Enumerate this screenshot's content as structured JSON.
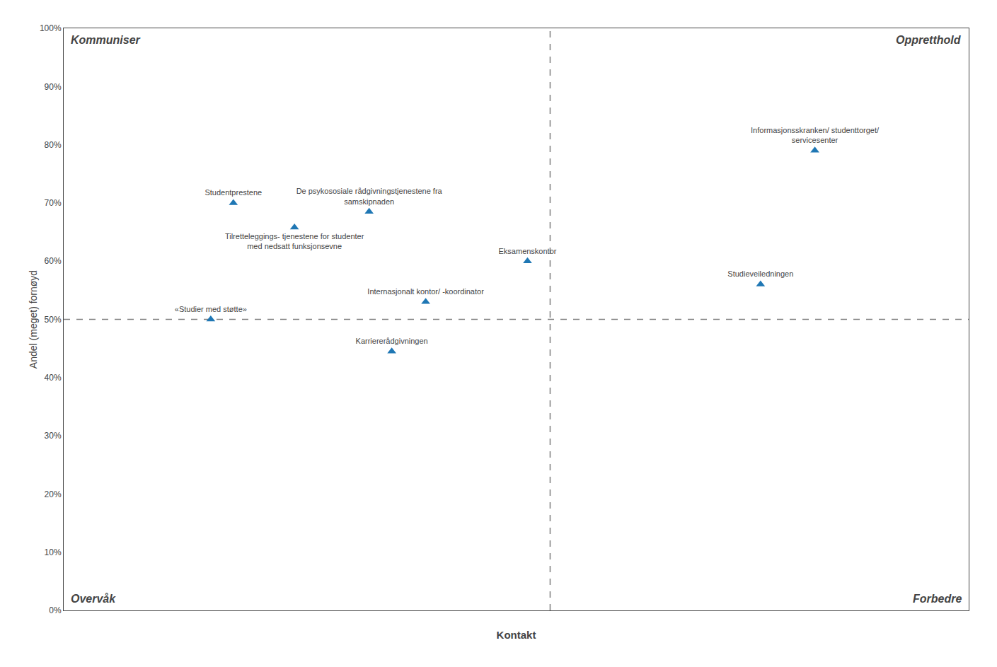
{
  "chart_data": {
    "type": "scatter",
    "xlabel": "Kontakt",
    "ylabel": "Andel (meget) fornøyd",
    "xlim": [
      0.5,
      4.5
    ],
    "xticks": [],
    "ylim": [
      0.0,
      1.0
    ],
    "yticks": [
      {
        "value": 0.0,
        "label": "0%"
      },
      {
        "value": 0.1,
        "label": "10%"
      },
      {
        "value": 0.2,
        "label": "20%"
      },
      {
        "value": 0.3,
        "label": "30%"
      },
      {
        "value": 0.4,
        "label": "40%"
      },
      {
        "value": 0.5,
        "label": "50%"
      },
      {
        "value": 0.6,
        "label": "60%"
      },
      {
        "value": 0.7,
        "label": "70%"
      },
      {
        "value": 0.8,
        "label": "80%"
      },
      {
        "value": 0.9,
        "label": "90%"
      },
      {
        "value": 1.0,
        "label": "100%"
      }
    ],
    "tick_labels": "y",
    "grid": false,
    "marker": "triangle-up",
    "x": [
      1.25,
      1.85,
      1.52,
      2.55,
      2.1,
      1.15,
      1.95,
      3.82,
      3.58
    ],
    "values": [
      0.7,
      0.685,
      0.658,
      0.6,
      0.53,
      0.5,
      0.445,
      0.79,
      0.56
    ],
    "labels": [
      "Studentprestene",
      "De psykososiale rådgivningstjenestene fra\nsamskipnaden",
      "Tilretteleggings- tjenestene for studenter\nmed nedsatt funksjonsevne",
      "Eksamenskontor",
      "Internasjonalt kontor/ -koordinator",
      "«Studier med støtte»",
      "Karriererådgivningen",
      "Informasjonsskranken/ studenttorget/\nservicesenter",
      "Studieveiledningen"
    ],
    "label_position": [
      "above",
      "above",
      "below",
      "above",
      "above",
      "above",
      "above",
      "above",
      "above"
    ],
    "hline": 0.5,
    "vline": 2.65,
    "annotations": [
      "Kommuniser",
      "Oppretthold",
      "Overvåk",
      "Forbedre"
    ]
  }
}
